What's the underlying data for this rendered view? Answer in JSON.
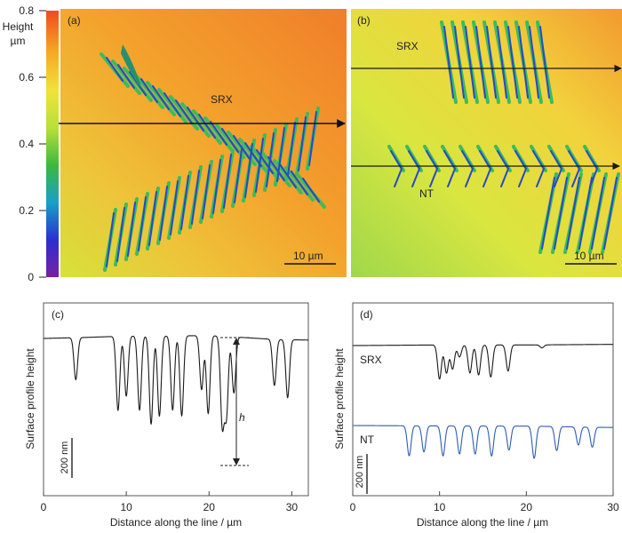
{
  "colorbar": {
    "title_line1": "Height",
    "title_line2": "µm",
    "ticks": [
      "0.8",
      "0.6",
      "0.4",
      "0.2",
      "0"
    ],
    "tick_values": [
      0.8,
      0.6,
      0.4,
      0.2,
      0
    ],
    "range": [
      0,
      0.8
    ],
    "colors": [
      "#7a1fa2",
      "#2b2fd0",
      "#19a0c8",
      "#3db83d",
      "#b8e03a",
      "#f2e23a",
      "#f5a623",
      "#ef4a1f"
    ]
  },
  "maps": [
    {
      "panel_label": "(a)",
      "region_labels": [
        "SRX"
      ],
      "scale_bar": "10 µm"
    },
    {
      "panel_label": "(b)",
      "region_labels": [
        "SRX",
        "NT"
      ],
      "scale_bar": "10 µm"
    }
  ],
  "profiles": {
    "colors": {
      "srx": "#1a1a1a",
      "nt": "#2e5bb0"
    },
    "c": {
      "panel_label": "(c)",
      "xlabel": "Distance along the line / µm",
      "ylabel": "Surface profile height",
      "xticks": [
        "0",
        "10",
        "20",
        "30"
      ],
      "scale_bar": "200 nm",
      "h_label": "h"
    },
    "d": {
      "panel_label": "(d)",
      "xlabel": "Distance along the line / µm",
      "ylabel": "Surface profile height",
      "xticks": [
        "0",
        "10",
        "20",
        "30"
      ],
      "scale_bar": "200 nm",
      "series_labels": [
        "SRX",
        "NT"
      ]
    }
  },
  "chart_data": [
    {
      "type": "line",
      "panel": "(c)",
      "xlabel": "Distance along the line / µm",
      "ylabel": "Surface profile height",
      "xlim": [
        0,
        32
      ],
      "scale_bar_nm": 200,
      "series": [
        {
          "baseline_nm": [
            [
              0,
              0
            ],
            [
              5,
              5
            ],
            [
              10,
              12
            ],
            [
              15,
              12
            ],
            [
              20,
              15
            ],
            [
              24,
              5
            ],
            [
              28,
              -5
            ],
            [
              32,
              -8
            ]
          ],
          "grooves": [
            {
              "x": 3.9,
              "depth_nm": 210
            },
            {
              "x": 9.0,
              "depth_nm": 370
            },
            {
              "x": 10.0,
              "depth_nm": 300
            },
            {
              "x": 11.6,
              "depth_nm": 370
            },
            {
              "x": 13.0,
              "depth_nm": 440
            },
            {
              "x": 14.0,
              "depth_nm": 400
            },
            {
              "x": 15.6,
              "depth_nm": 370
            },
            {
              "x": 16.7,
              "depth_nm": 400
            },
            {
              "x": 19.1,
              "depth_nm": 270
            },
            {
              "x": 19.9,
              "depth_nm": 390
            },
            {
              "x": 21.6,
              "depth_nm": 440
            },
            {
              "x": 22.1,
              "depth_nm": 390
            },
            {
              "x": 23.0,
              "depth_nm": 280
            },
            {
              "x": 27.9,
              "depth_nm": 230
            },
            {
              "x": 29.5,
              "depth_nm": 290
            }
          ]
        }
      ]
    },
    {
      "type": "line",
      "panel": "(d)",
      "xlabel": "Distance along the line / µm",
      "ylabel": "Surface profile height",
      "xlim": [
        0,
        30
      ],
      "scale_bar_nm": 200,
      "series": [
        {
          "name": "SRX",
          "baseline_nm": [
            [
              0,
              0
            ],
            [
              10,
              3
            ],
            [
              20,
              3
            ],
            [
              30,
              6
            ]
          ],
          "grooves": [
            {
              "x": 10.0,
              "depth_nm": 170
            },
            {
              "x": 10.8,
              "depth_nm": 140
            },
            {
              "x": 11.5,
              "depth_nm": 120
            },
            {
              "x": 12.3,
              "depth_nm": 60
            },
            {
              "x": 13.5,
              "depth_nm": 140
            },
            {
              "x": 14.5,
              "depth_nm": 150
            },
            {
              "x": 15.9,
              "depth_nm": 160
            },
            {
              "x": 17.9,
              "depth_nm": 130
            },
            {
              "x": 21.8,
              "depth_nm": 15
            }
          ]
        },
        {
          "name": "NT",
          "baseline_nm": [
            [
              0,
              0
            ],
            [
              10,
              -2
            ],
            [
              20,
              -3
            ],
            [
              30,
              -10
            ]
          ],
          "grooves": [
            {
              "x": 6.5,
              "depth_nm": 150
            },
            {
              "x": 8.2,
              "depth_nm": 130
            },
            {
              "x": 10.4,
              "depth_nm": 150
            },
            {
              "x": 12.3,
              "depth_nm": 140
            },
            {
              "x": 14.1,
              "depth_nm": 140
            },
            {
              "x": 16.0,
              "depth_nm": 150
            },
            {
              "x": 18.0,
              "depth_nm": 120
            },
            {
              "x": 20.9,
              "depth_nm": 160
            },
            {
              "x": 23.5,
              "depth_nm": 120
            },
            {
              "x": 26.0,
              "depth_nm": 90
            },
            {
              "x": 27.6,
              "depth_nm": 100
            }
          ]
        }
      ]
    }
  ]
}
